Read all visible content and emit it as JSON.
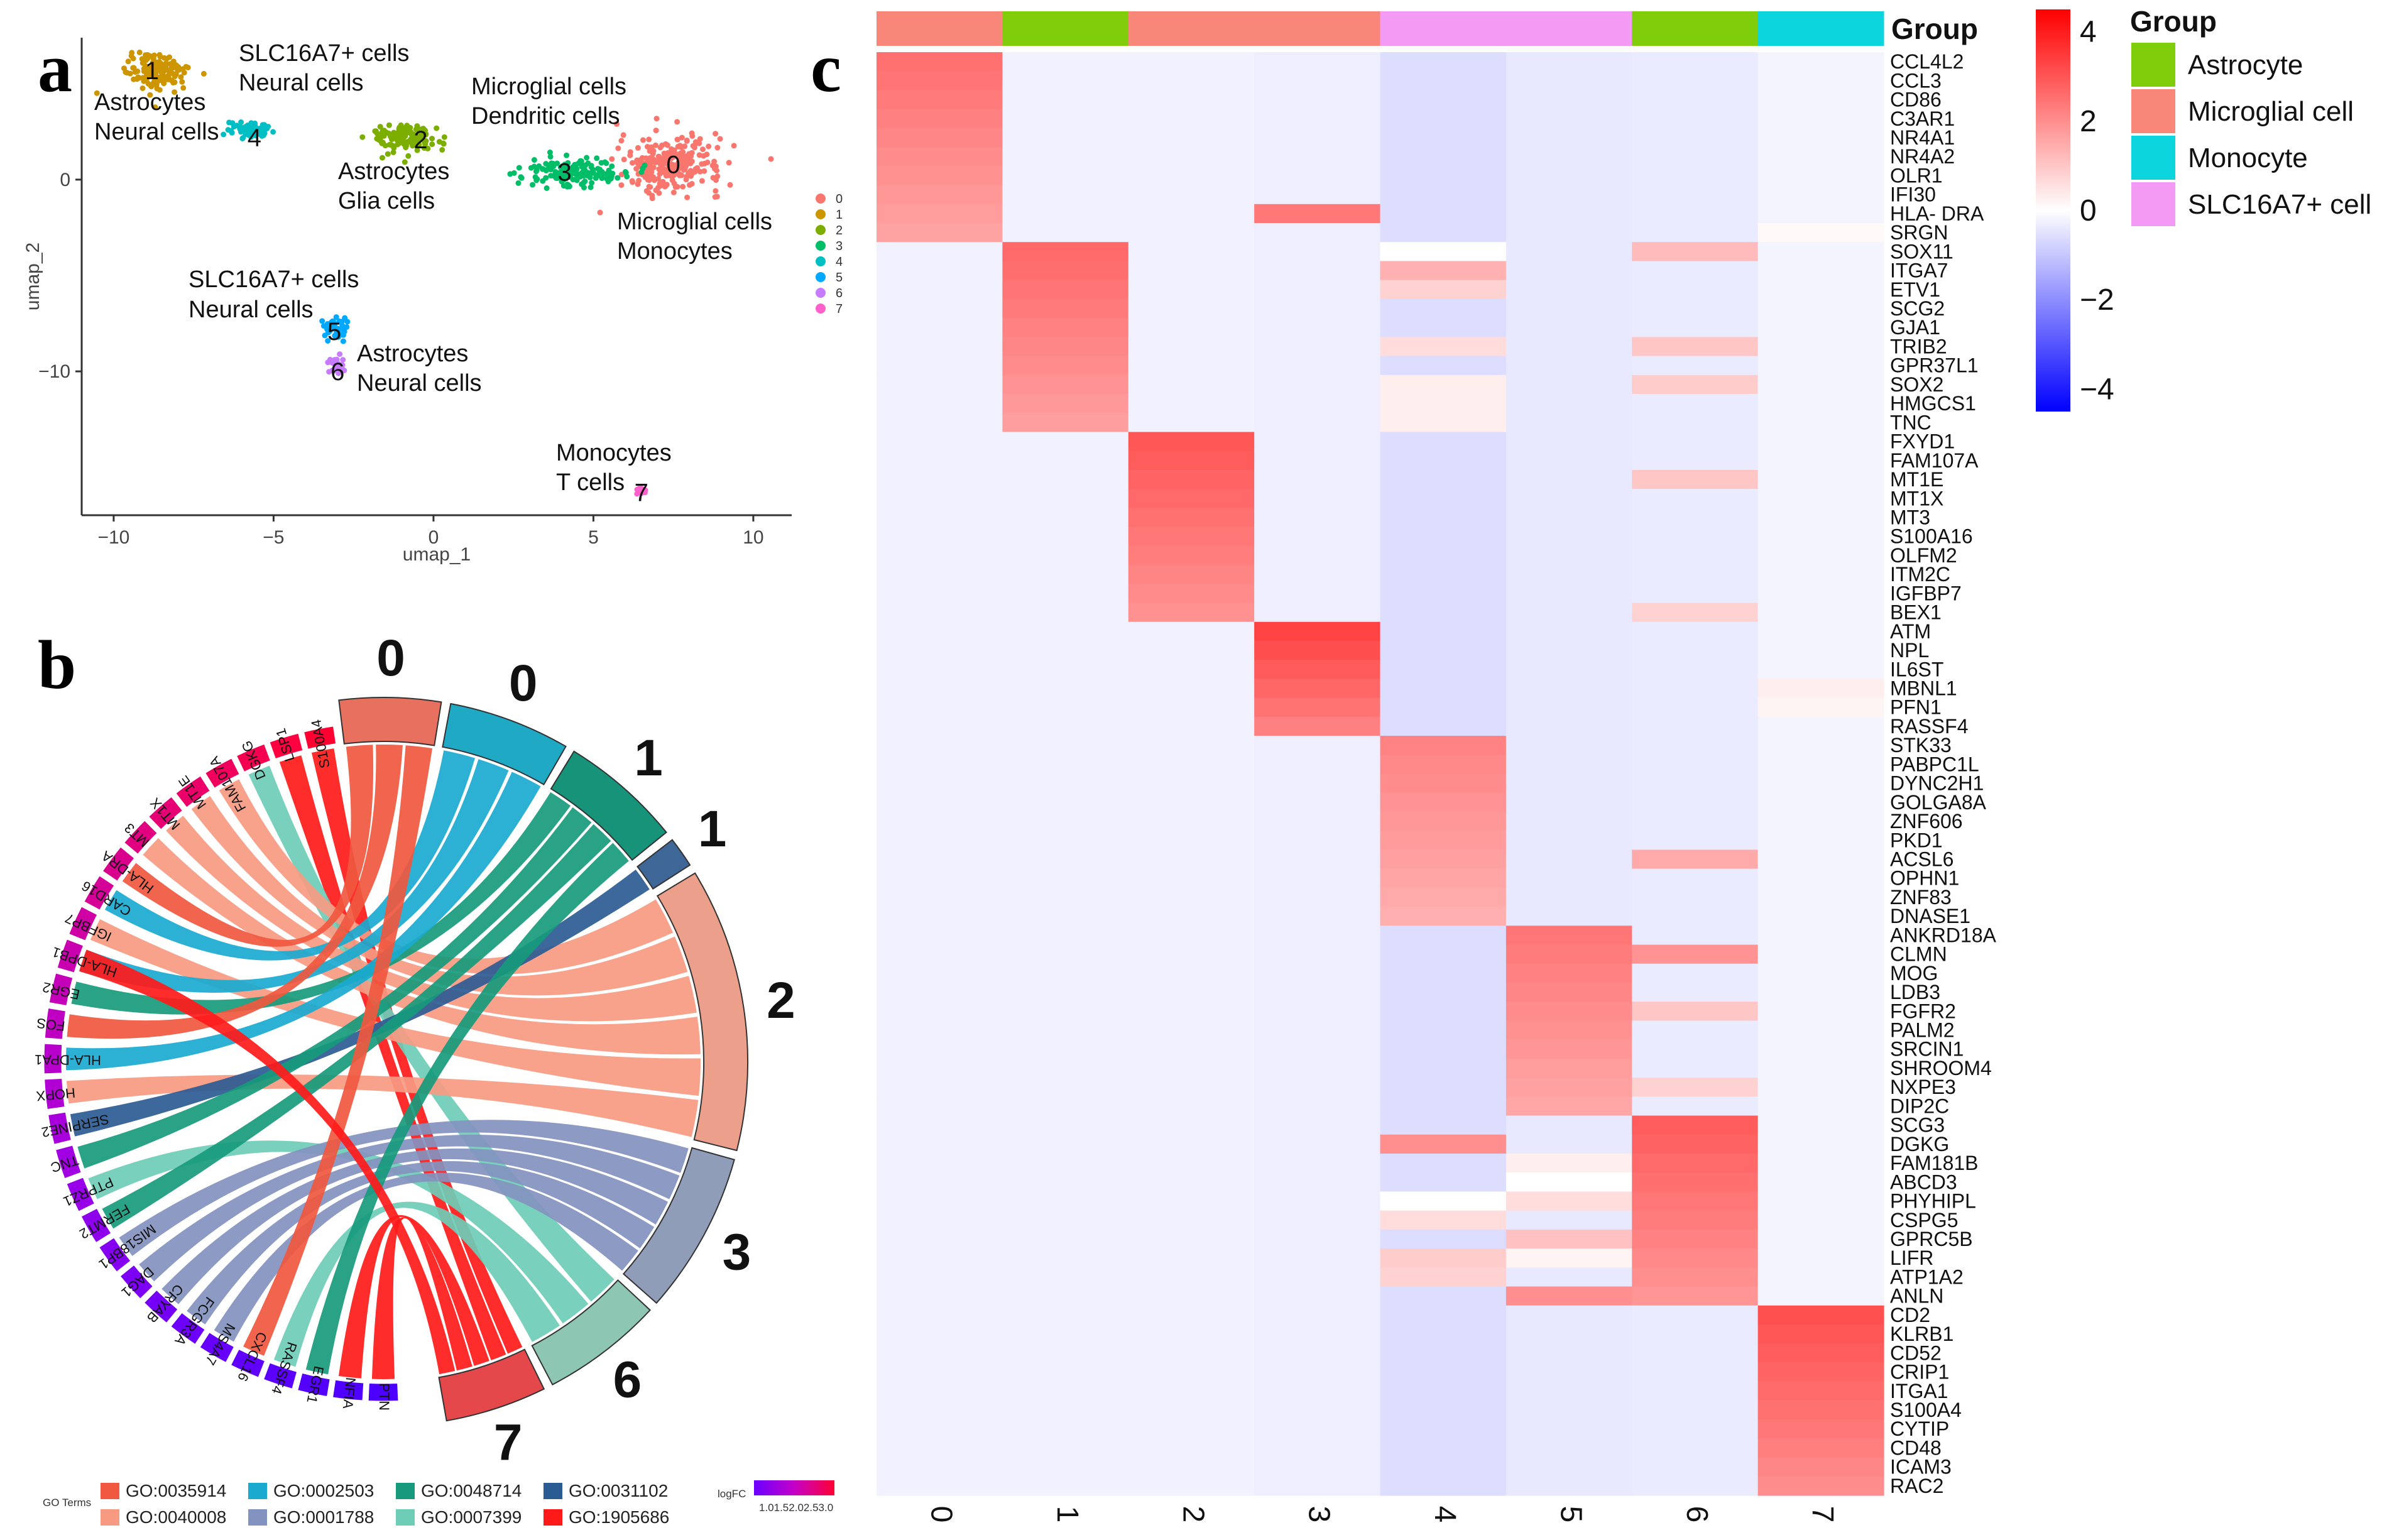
{
  "panels": {
    "a": "a",
    "b": "b",
    "c": "c"
  },
  "umap": {
    "xlabel": "umap_1",
    "ylabel": "umap_2",
    "x_ticks": [
      "−10",
      "−5",
      "0",
      "5",
      "10"
    ],
    "y_ticks": [
      "0",
      "−10"
    ],
    "legend": [
      {
        "label": "0",
        "color": "#F8766D"
      },
      {
        "label": "1",
        "color": "#CD9600"
      },
      {
        "label": "2",
        "color": "#7CAE00"
      },
      {
        "label": "3",
        "color": "#00BE67"
      },
      {
        "label": "4",
        "color": "#00BFC4"
      },
      {
        "label": "5",
        "color": "#00A9FF"
      },
      {
        "label": "6",
        "color": "#C77CFF"
      },
      {
        "label": "7",
        "color": "#FF61CC"
      }
    ],
    "clusters": [
      {
        "id": "0",
        "cx": 7.4,
        "cy": 0.8,
        "sx": 1.8,
        "sy": 1.6,
        "n": 260,
        "color": "#F8766D",
        "label_x": 7.5,
        "label_y": 0.8
      },
      {
        "id": "1",
        "cx": -8.6,
        "cy": 5.6,
        "sx": 1.0,
        "sy": 1.0,
        "n": 170,
        "color": "#CD9600",
        "label_x": -8.8,
        "label_y": 5.7
      },
      {
        "id": "2",
        "cx": -0.9,
        "cy": 2.2,
        "sx": 1.2,
        "sy": 0.9,
        "n": 130,
        "color": "#7CAE00",
        "label_x": -0.4,
        "label_y": 2.1
      },
      {
        "id": "3",
        "cx": 4.4,
        "cy": 0.4,
        "sx": 1.8,
        "sy": 0.8,
        "n": 150,
        "color": "#00BE67",
        "label_x": 4.1,
        "label_y": 0.4
      },
      {
        "id": "4",
        "cx": -5.8,
        "cy": 2.6,
        "sx": 0.7,
        "sy": 0.5,
        "n": 55,
        "color": "#00BFC4",
        "label_x": -5.6,
        "label_y": 2.2
      },
      {
        "id": "5",
        "cx": -3.1,
        "cy": -7.7,
        "sx": 0.4,
        "sy": 0.6,
        "n": 45,
        "color": "#00A9FF",
        "label_x": -3.1,
        "label_y": -7.9
      },
      {
        "id": "6",
        "cx": -3.0,
        "cy": -9.8,
        "sx": 0.3,
        "sy": 0.6,
        "n": 30,
        "color": "#C77CFF",
        "label_x": -3.0,
        "label_y": -10.0
      },
      {
        "id": "7",
        "cx": 6.5,
        "cy": -16.2,
        "sx": 0.2,
        "sy": 0.2,
        "n": 20,
        "color": "#FF61CC",
        "label_x": 6.5,
        "label_y": -16.3
      }
    ],
    "annotations": [
      {
        "l1": "Astrocytes",
        "l2": "Neural cells"
      },
      {
        "l1": "SLC16A7+ cells",
        "l2": "Neural cells"
      },
      {
        "l1": "Microglial cells",
        "l2": "Dendritic cells"
      },
      {
        "l1": "Astrocytes",
        "l2": "Glia cells"
      },
      {
        "l1": "Microglial cells",
        "l2": "Monocytes"
      },
      {
        "l1": "SLC16A7+ cells",
        "l2": "Neural cells"
      },
      {
        "l1": "Astrocytes",
        "l2": "Neural cells"
      },
      {
        "l1": "Monocytes",
        "l2": "T cells"
      }
    ]
  },
  "chord": {
    "genes": [
      "S100A4",
      "LSP1",
      "DGKG",
      "FAM107A",
      "MT1E",
      "MT1X",
      "MT3",
      "HLA-DRA",
      "CARD16",
      "IGFBP7",
      "HLA-DPB1",
      "EGR2",
      "FOS",
      "HLA-DPA1",
      "HOPX",
      "SERPINE2",
      "TNC",
      "PTPRZ1",
      "FERMT2",
      "MIS18BP1",
      "DAG1",
      "CRYAB",
      "FCGR3A",
      "MS4A7",
      "CXCL16",
      "RASSF4",
      "EGR1",
      "NFIA",
      "PTN"
    ],
    "sectors": [
      {
        "label": "0",
        "color": "#E7705F",
        "size": 5
      },
      {
        "label": "0",
        "color": "#1FA9C4",
        "size": 6
      },
      {
        "label": "1",
        "color": "#17937A",
        "size": 6
      },
      {
        "label": "1",
        "color": "#3E6696",
        "size": 1.5
      },
      {
        "label": "2",
        "color": "#ECA08B",
        "size": 14
      },
      {
        "label": "3",
        "color": "#8F9DB9",
        "size": 8
      },
      {
        "label": "6",
        "color": "#8EC6B4",
        "size": 6
      },
      {
        "label": "7",
        "color": "#E5484A",
        "size": 5
      }
    ],
    "links": [
      {
        "g": 0,
        "s": 7,
        "color": "#FF1A1A"
      },
      {
        "g": 1,
        "s": 7,
        "color": "#FF1A1A"
      },
      {
        "g": 2,
        "s": 6,
        "color": "#6ECDB7"
      },
      {
        "g": 3,
        "s": 4,
        "color": "#F79A82"
      },
      {
        "g": 4,
        "s": 4,
        "color": "#F79A82"
      },
      {
        "g": 5,
        "s": 4,
        "color": "#F79A82"
      },
      {
        "g": 6,
        "s": 4,
        "color": "#F79A82"
      },
      {
        "g": 7,
        "s": 0,
        "color": "#F0583F"
      },
      {
        "g": 8,
        "s": 1,
        "color": "#1AAAD0"
      },
      {
        "g": 9,
        "s": 4,
        "color": "#F79A82"
      },
      {
        "g": 10,
        "s": 1,
        "color": "#1AAAD0"
      },
      {
        "g": 11,
        "s": 2,
        "color": "#179A7C"
      },
      {
        "g": 12,
        "s": 0,
        "color": "#F0583F"
      },
      {
        "g": 13,
        "s": 1,
        "color": "#1AAAD0"
      },
      {
        "g": 14,
        "s": 4,
        "color": "#F79A82"
      },
      {
        "g": 15,
        "s": 3,
        "color": "#2B5B93"
      },
      {
        "g": 16,
        "s": 2,
        "color": "#179A7C"
      },
      {
        "g": 17,
        "s": 6,
        "color": "#6ECDB7"
      },
      {
        "g": 18,
        "s": 2,
        "color": "#179A7C"
      },
      {
        "g": 19,
        "s": 5,
        "color": "#8393BF"
      },
      {
        "g": 20,
        "s": 5,
        "color": "#8393BF"
      },
      {
        "g": 21,
        "s": 5,
        "color": "#8393BF"
      },
      {
        "g": 22,
        "s": 5,
        "color": "#8393BF"
      },
      {
        "g": 23,
        "s": 5,
        "color": "#8393BF"
      },
      {
        "g": 24,
        "s": 0,
        "color": "#F0583F"
      },
      {
        "g": 25,
        "s": 6,
        "color": "#6ECDB7"
      },
      {
        "g": 26,
        "s": 2,
        "color": "#179A7C"
      },
      {
        "g": 27,
        "s": 7,
        "color": "#FF1A1A"
      },
      {
        "g": 28,
        "s": 7,
        "color": "#FF1A1A"
      },
      {
        "g": 10,
        "s": 7,
        "color": "#FF1A1A"
      }
    ],
    "legend_title": "GO Terms",
    "go_terms": [
      {
        "term": "GO:0035914",
        "color": "#F0583F"
      },
      {
        "term": "GO:0040008",
        "color": "#F79A82"
      },
      {
        "term": "GO:0002503",
        "color": "#1AAAD0"
      },
      {
        "term": "GO:0001788",
        "color": "#8393BF"
      },
      {
        "term": "GO:0048714",
        "color": "#179A7C"
      },
      {
        "term": "GO:0007399",
        "color": "#6ECDB7"
      },
      {
        "term": "GO:0031102",
        "color": "#2B5B93"
      },
      {
        "term": "GO:1905686",
        "color": "#FF1A1A"
      }
    ],
    "logfc_title": "logFC",
    "logfc_ticks": "1.01.52.02.53.0"
  },
  "chart_data": {
    "type": "heatmap",
    "title": "",
    "columns": [
      "0",
      "1",
      "2",
      "3",
      "4",
      "5",
      "6",
      "7"
    ],
    "group_title": "Group",
    "groups": [
      "Microglial cell",
      "Astrocyte",
      "Microglial cell",
      "Microglial cell",
      "SLC16A7+ cell",
      "SLC16A7+ cell",
      "Astrocyte",
      "Monocyte"
    ],
    "group_legend": [
      {
        "name": "Astrocyte",
        "color": "#7FCD0B"
      },
      {
        "name": "Microglial cell",
        "color": "#F8877A"
      },
      {
        "name": "Monocyte",
        "color": "#0CD5DD"
      },
      {
        "name": "SLC16A7+ cell",
        "color": "#F39AF4"
      }
    ],
    "colorbar": {
      "min": -4.5,
      "max": 4.5,
      "ticks": [
        "4",
        "2",
        "0",
        "−2",
        "−4"
      ],
      "tick_values": [
        4,
        2,
        0,
        -2,
        -4
      ]
    },
    "genes": [
      "CCL4L2",
      "CCL3",
      "CD86",
      "C3AR1",
      "NR4A1",
      "NR4A2",
      "OLR1",
      "IFI30",
      "HLA- DRA",
      "SRGN",
      "SOX11",
      "ITGA7",
      "ETV1",
      "SCG2",
      "GJA1",
      "TRIB2",
      "GPR37L1",
      "SOX2",
      "HMGCS1",
      "TNC",
      "FXYD1",
      "FAM107A",
      "MT1E",
      "MT1X",
      "MT3",
      "S100A16",
      "OLFM2",
      "ITM2C",
      "IGFBP7",
      "BEX1",
      "ATM",
      "NPL",
      "IL6ST",
      "MBNL1",
      "PFN1",
      "RASSF4",
      "STK33",
      "PABPC1L",
      "DYNC2H1",
      "GOLGA8A",
      "ZNF606",
      "PKD1",
      "ACSL6",
      "OPHN1",
      "ZNF83",
      "DNASE1",
      "ANKRD18A",
      "CLMN",
      "MOG",
      "LDB3",
      "FGFR2",
      "PALM2",
      "SRCIN1",
      "SHROOM4",
      "NXPE3",
      "DIP2C",
      "SCG3",
      "DGKG",
      "FAM181B",
      "ABCD3",
      "PHYHIPL",
      "CSPG5",
      "GPRC5B",
      "LIFR",
      "ATP1A2",
      "ANLN",
      "CD2",
      "KLRB1",
      "CD52",
      "CRIP1",
      "ITGA1",
      "S100A4",
      "CYTIP",
      "CD48",
      "ICAM3",
      "RAC2"
    ],
    "baseline": [
      -0.25,
      -0.25,
      -0.25,
      -0.3,
      -0.6,
      -0.4,
      -0.35,
      -0.2
    ],
    "block_values": [
      2.2,
      2.3,
      2.6,
      2.9,
      1.9,
      2.1,
      2.5,
      2.7
    ],
    "extra_cells": [
      {
        "gene": "HLA- DRA",
        "col": 3,
        "value": 2.4
      },
      {
        "gene": "SRGN",
        "col": 7,
        "value": 0.1
      },
      {
        "gene": "SOX11",
        "col": 4,
        "value": 0.0
      },
      {
        "gene": "SOX11",
        "col": 6,
        "value": 1.2
      },
      {
        "gene": "ITGA7",
        "col": 4,
        "value": 1.4
      },
      {
        "gene": "ETV1",
        "col": 4,
        "value": 0.8
      },
      {
        "gene": "TRIB2",
        "col": 4,
        "value": 0.6
      },
      {
        "gene": "TRIB2",
        "col": 6,
        "value": 1.0
      },
      {
        "gene": "SOX2",
        "col": 6,
        "value": 0.9
      },
      {
        "gene": "SOX2",
        "col": 4,
        "value": 0.3
      },
      {
        "gene": "HMGCS1",
        "col": 4,
        "value": 0.3
      },
      {
        "gene": "TNC",
        "col": 4,
        "value": 0.3
      },
      {
        "gene": "MT1E",
        "col": 6,
        "value": 1.0
      },
      {
        "gene": "BEX1",
        "col": 6,
        "value": 0.8
      },
      {
        "gene": "MBNL1",
        "col": 7,
        "value": 0.3
      },
      {
        "gene": "PFN1",
        "col": 7,
        "value": 0.2
      },
      {
        "gene": "ACSL6",
        "col": 6,
        "value": 1.5
      },
      {
        "gene": "CLMN",
        "col": 6,
        "value": 1.9
      },
      {
        "gene": "FGFR2",
        "col": 6,
        "value": 1.0
      },
      {
        "gene": "NXPE3",
        "col": 6,
        "value": 0.8
      },
      {
        "gene": "DGKG",
        "col": 4,
        "value": 2.0
      },
      {
        "gene": "FAM181B",
        "col": 5,
        "value": 0.3
      },
      {
        "gene": "ABCD3",
        "col": 5,
        "value": 0.0
      },
      {
        "gene": "PHYHIPL",
        "col": 4,
        "value": 0.0
      },
      {
        "gene": "PHYHIPL",
        "col": 5,
        "value": 0.6
      },
      {
        "gene": "CSPG5",
        "col": 4,
        "value": 0.6
      },
      {
        "gene": "GPRC5B",
        "col": 5,
        "value": 1.1
      },
      {
        "gene": "LIFR",
        "col": 4,
        "value": 0.9
      },
      {
        "gene": "LIFR",
        "col": 5,
        "value": 0.2
      },
      {
        "gene": "ATP1A2",
        "col": 4,
        "value": 0.8
      },
      {
        "gene": "ANLN",
        "col": 5,
        "value": 2.0
      }
    ]
  }
}
